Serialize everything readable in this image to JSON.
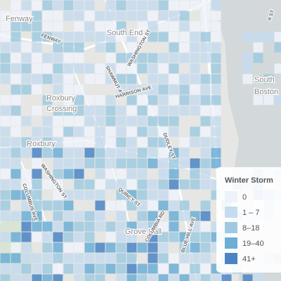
{
  "map_labels": [
    "Fenway",
    "South End",
    "Roxbury",
    "Crossing",
    "Roxbury",
    "Grove Hall",
    "South",
    "Boston"
  ],
  "street_labels": [
    "FENWAY",
    "WASHINGTON ST",
    "SHAWMUT AVE",
    "HARRISON AVE",
    "WASHINGTON ST",
    "COLUMBUS AVE",
    "DUDLEY ST",
    "QUINCY ST",
    "BLUE HILL AVE",
    "COLUMBIA RD",
    "A ST"
  ],
  "legend": {
    "title": "Winter Storm",
    "items": [
      {
        "label": "0",
        "color": "#eef3fb"
      },
      {
        "label": "1 – 7",
        "color": "#c6dbef"
      },
      {
        "label": "8–18",
        "color": "#9ecae1"
      },
      {
        "label": "19–40",
        "color": "#6baed6"
      },
      {
        "label": "41+",
        "color": "#4a84c4"
      }
    ]
  }
}
